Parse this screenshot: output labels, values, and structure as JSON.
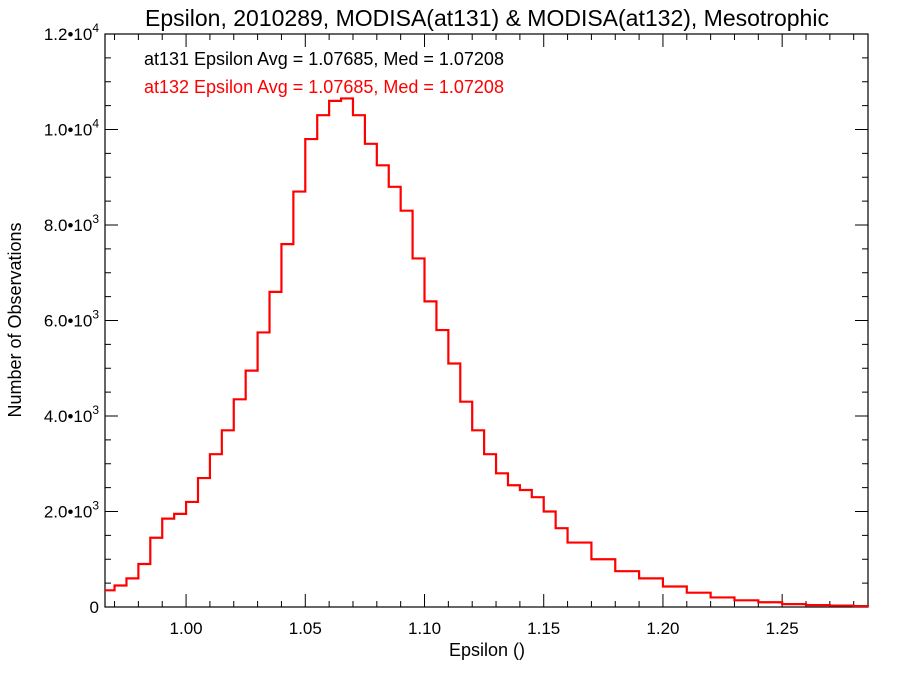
{
  "chart_data": {
    "type": "line",
    "style": "histogram-step",
    "title": "Epsilon, 2010289, MODISA(at131) & MODISA(at132), Mesotrophic",
    "xlabel": "Epsilon ()",
    "ylabel": "Number of Observations",
    "xlim": [
      0.966,
      1.286
    ],
    "ylim": [
      0,
      12000
    ],
    "xticks": [
      1.0,
      1.05,
      1.1,
      1.15,
      1.2,
      1.25
    ],
    "xtick_labels": [
      "1.00",
      "1.05",
      "1.10",
      "1.15",
      "1.20",
      "1.25"
    ],
    "yticks": [
      0,
      2000,
      4000,
      6000,
      8000,
      10000,
      12000
    ],
    "ytick_labels": [
      {
        "mant": "0",
        "exp": ""
      },
      {
        "mant": "2.0•10",
        "exp": "3"
      },
      {
        "mant": "4.0•10",
        "exp": "3"
      },
      {
        "mant": "6.0•10",
        "exp": "3"
      },
      {
        "mant": "8.0•10",
        "exp": "3"
      },
      {
        "mant": "1.0•10",
        "exp": "4"
      },
      {
        "mant": "1.2•10",
        "exp": "4"
      }
    ],
    "annotations": [
      {
        "text": "at131 Epsilon Avg = 1.07685, Med = 1.07208",
        "color": "#000000"
      },
      {
        "text": "at132 Epsilon Avg = 1.07685, Med = 1.07208",
        "color": "#ff0000"
      }
    ],
    "series": [
      {
        "color": "#ff0000",
        "x": [
          0.966,
          0.97,
          0.975,
          0.98,
          0.985,
          0.99,
          0.995,
          1.0,
          1.005,
          1.01,
          1.015,
          1.02,
          1.025,
          1.03,
          1.035,
          1.04,
          1.045,
          1.05,
          1.055,
          1.06,
          1.065,
          1.07,
          1.075,
          1.08,
          1.085,
          1.09,
          1.095,
          1.1,
          1.105,
          1.11,
          1.115,
          1.12,
          1.125,
          1.13,
          1.135,
          1.14,
          1.145,
          1.15,
          1.155,
          1.16,
          1.17,
          1.18,
          1.19,
          1.2,
          1.21,
          1.22,
          1.23,
          1.24,
          1.25,
          1.26,
          1.27,
          1.28,
          1.286
        ],
        "values": [
          350,
          450,
          600,
          900,
          1450,
          1850,
          1950,
          2200,
          2700,
          3200,
          3700,
          4350,
          4950,
          5750,
          6600,
          7600,
          8700,
          9800,
          10300,
          10600,
          10650,
          10300,
          9700,
          9250,
          8800,
          8300,
          7300,
          6400,
          5800,
          5100,
          4300,
          3700,
          3200,
          2800,
          2550,
          2450,
          2300,
          2000,
          1650,
          1350,
          1000,
          750,
          600,
          430,
          300,
          200,
          140,
          100,
          60,
          40,
          30,
          20,
          15
        ]
      }
    ]
  }
}
